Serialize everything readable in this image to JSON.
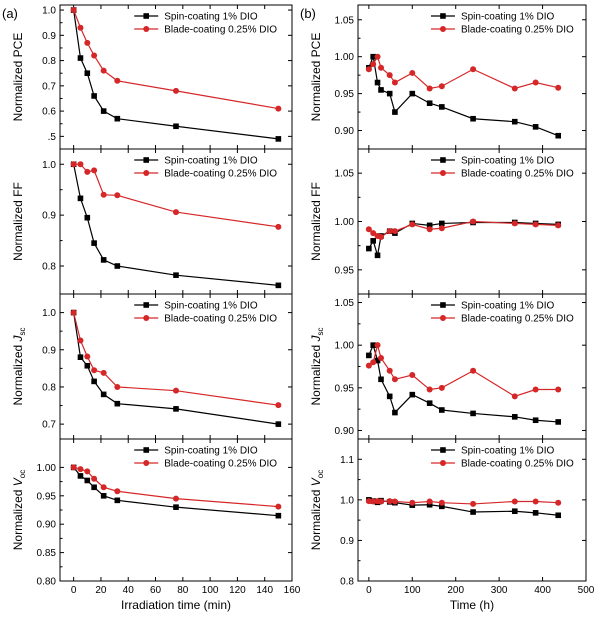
{
  "figure": {
    "colors": {
      "black_series": "#000000",
      "red_series": "#d62728",
      "frame": "#000000"
    }
  },
  "chart_data": [
    {
      "panel_id": "(a)",
      "type": "line",
      "row": 0,
      "col": 0,
      "ylabel": "Normalized PCE",
      "xlim": [
        -10,
        160
      ],
      "ylim": [
        0.45,
        1.02
      ],
      "yticks": [
        0.5,
        0.6,
        0.7,
        0.8,
        0.9,
        1.0
      ],
      "ytick_labels": [
        ".5",
        "0.6",
        "0.7",
        "0.8",
        "0.9",
        "1.0"
      ],
      "x": [
        0,
        5,
        10,
        15,
        22,
        32,
        75,
        150
      ],
      "series": [
        {
          "name": "Spin-coating 1% DIO",
          "color": "#000000",
          "marker": "square",
          "values": [
            1.0,
            0.81,
            0.75,
            0.66,
            0.6,
            0.57,
            0.54,
            0.49
          ]
        },
        {
          "name": "Blade-coating 0.25% DIO",
          "color": "#d62728",
          "marker": "circle",
          "values": [
            1.0,
            0.93,
            0.87,
            0.82,
            0.76,
            0.72,
            0.68,
            0.61
          ]
        }
      ]
    },
    {
      "type": "line",
      "row": 1,
      "col": 0,
      "ylabel": "Normalized FF",
      "xlim": [
        -10,
        160
      ],
      "ylim": [
        0.745,
        1.03
      ],
      "yticks": [
        0.8,
        0.9,
        1.0
      ],
      "ytick_labels": [
        "0.8",
        "0.9",
        "1.0"
      ],
      "x": [
        0,
        5,
        10,
        15,
        22,
        32,
        75,
        150
      ],
      "series": [
        {
          "name": "Spin-coating 1% DIO",
          "color": "#000000",
          "marker": "square",
          "values": [
            1.0,
            0.933,
            0.895,
            0.845,
            0.812,
            0.8,
            0.782,
            0.762
          ]
        },
        {
          "name": "Blade-coating 0.25% DIO",
          "color": "#d62728",
          "marker": "circle",
          "values": [
            1.0,
            1.0,
            0.985,
            0.988,
            0.94,
            0.939,
            0.906,
            0.877
          ]
        }
      ]
    },
    {
      "type": "line",
      "row": 2,
      "col": 0,
      "ylabel_prefix": "Normalized ",
      "ylabel_italic": "J",
      "ylabel_sub": "sc",
      "xlim": [
        -10,
        160
      ],
      "ylim": [
        0.66,
        1.05
      ],
      "yticks": [
        0.7,
        0.8,
        0.9,
        1.0
      ],
      "ytick_labels": [
        "0.7",
        "0.8",
        "0.9",
        "1.0"
      ],
      "x": [
        0,
        5,
        10,
        15,
        22,
        32,
        75,
        150
      ],
      "series": [
        {
          "name": "Spin-coating 1% DIO",
          "color": "#000000",
          "marker": "square",
          "values": [
            1.0,
            0.88,
            0.857,
            0.815,
            0.78,
            0.755,
            0.741,
            0.7
          ]
        },
        {
          "name": "Blade-coating 0.25% DIO",
          "color": "#d62728",
          "marker": "circle",
          "values": [
            1.0,
            0.925,
            0.882,
            0.845,
            0.838,
            0.8,
            0.79,
            0.751
          ]
        }
      ]
    },
    {
      "type": "line",
      "row": 3,
      "col": 0,
      "ylabel_prefix": "Normalized ",
      "ylabel_italic": "V",
      "ylabel_sub": "oc",
      "xlabel": "Irradiation time (min)",
      "xlim": [
        -10,
        160
      ],
      "ylim": [
        0.8,
        1.05
      ],
      "yticks": [
        0.8,
        0.85,
        0.9,
        0.95,
        1.0
      ],
      "ytick_labels": [
        "0.80",
        "0.85",
        "0.90",
        "0.95",
        "1.00"
      ],
      "xticks": [
        0,
        20,
        40,
        60,
        80,
        100,
        120,
        140,
        160
      ],
      "xtick_labels": [
        "0",
        "20",
        "40",
        "60",
        "80",
        "100",
        "120",
        "140",
        "160"
      ],
      "x": [
        0,
        5,
        10,
        15,
        22,
        32,
        75,
        150
      ],
      "series": [
        {
          "name": "Spin-coating 1% DIO",
          "color": "#000000",
          "marker": "square",
          "values": [
            1.0,
            0.985,
            0.977,
            0.965,
            0.95,
            0.942,
            0.93,
            0.915
          ]
        },
        {
          "name": "Blade-coating 0.25% DIO",
          "color": "#d62728",
          "marker": "circle",
          "values": [
            1.0,
            0.997,
            0.993,
            0.98,
            0.965,
            0.958,
            0.945,
            0.931
          ]
        }
      ]
    },
    {
      "panel_id": "(b)",
      "type": "line",
      "row": 0,
      "col": 1,
      "ylabel": "Normalized PCE",
      "xlim": [
        -25,
        500
      ],
      "ylim": [
        0.875,
        1.07
      ],
      "yticks": [
        0.9,
        0.95,
        1.0,
        1.05
      ],
      "ytick_labels": [
        "0.90",
        "0.95",
        "1.00",
        "1.05"
      ],
      "series": [
        {
          "name": "Spin-coating 1% DIO",
          "color": "#000000",
          "marker": "square",
          "x": [
            0,
            10,
            20,
            28,
            48,
            60,
            100,
            140,
            168,
            240,
            336,
            384,
            436
          ],
          "values": [
            0.985,
            1.0,
            0.965,
            0.955,
            0.95,
            0.925,
            0.95,
            0.937,
            0.932,
            0.916,
            0.912,
            0.905,
            0.893
          ]
        },
        {
          "name": "Blade-coating 0.25% DIO",
          "color": "#d62728",
          "marker": "circle",
          "x": [
            0,
            10,
            20,
            28,
            48,
            60,
            100,
            140,
            168,
            240,
            336,
            384,
            436
          ],
          "values": [
            0.983,
            0.99,
            1.0,
            0.985,
            0.975,
            0.965,
            0.978,
            0.957,
            0.96,
            0.983,
            0.957,
            0.965,
            0.958
          ]
        }
      ]
    },
    {
      "type": "line",
      "row": 1,
      "col": 1,
      "ylabel": "Normalized FF",
      "xlim": [
        -25,
        500
      ],
      "ylim": [
        0.925,
        1.075
      ],
      "yticks": [
        0.95,
        1.0,
        1.05
      ],
      "ytick_labels": [
        "0.95",
        "1.00",
        "1.05"
      ],
      "series": [
        {
          "name": "Spin-coating 1% DIO",
          "color": "#000000",
          "marker": "square",
          "x": [
            0,
            10,
            20,
            28,
            48,
            60,
            100,
            140,
            168,
            240,
            336,
            384,
            436
          ],
          "values": [
            0.972,
            0.98,
            0.965,
            0.985,
            0.99,
            0.988,
            0.998,
            0.996,
            0.998,
            0.999,
            0.999,
            0.998,
            0.997
          ]
        },
        {
          "name": "Blade-coating 0.25% DIO",
          "color": "#d62728",
          "marker": "circle",
          "x": [
            0,
            10,
            20,
            28,
            48,
            60,
            100,
            140,
            168,
            240,
            336,
            384,
            436
          ],
          "values": [
            0.992,
            0.988,
            0.985,
            0.984,
            0.99,
            0.99,
            0.997,
            0.992,
            0.993,
            1.0,
            0.998,
            0.997,
            0.996
          ]
        }
      ]
    },
    {
      "type": "line",
      "row": 2,
      "col": 1,
      "ylabel_prefix": "Normalized ",
      "ylabel_italic": "J",
      "ylabel_sub": "sc",
      "xlim": [
        -25,
        500
      ],
      "ylim": [
        0.89,
        1.06
      ],
      "yticks": [
        0.9,
        0.95,
        1.0,
        1.05
      ],
      "ytick_labels": [
        "0.90",
        "0.95",
        "1.00",
        "1.05"
      ],
      "series": [
        {
          "name": "Spin-coating 1% DIO",
          "color": "#000000",
          "marker": "square",
          "x": [
            0,
            10,
            20,
            28,
            48,
            60,
            100,
            140,
            168,
            240,
            336,
            384,
            436
          ],
          "values": [
            0.988,
            1.0,
            0.982,
            0.96,
            0.94,
            0.921,
            0.942,
            0.932,
            0.924,
            0.92,
            0.916,
            0.912,
            0.91
          ]
        },
        {
          "name": "Blade-coating 0.25% DIO",
          "color": "#d62728",
          "marker": "circle",
          "x": [
            0,
            10,
            20,
            28,
            48,
            60,
            100,
            140,
            168,
            240,
            336,
            384,
            436
          ],
          "values": [
            0.976,
            0.98,
            1.0,
            0.985,
            0.97,
            0.96,
            0.965,
            0.948,
            0.95,
            0.97,
            0.94,
            0.948,
            0.948
          ]
        }
      ]
    },
    {
      "type": "line",
      "row": 3,
      "col": 1,
      "ylabel_prefix": "Normalized ",
      "ylabel_italic": "V",
      "ylabel_sub": "oc",
      "xlabel": "Time (h)",
      "xlim": [
        -25,
        500
      ],
      "ylim": [
        0.8,
        1.15
      ],
      "yticks": [
        0.8,
        0.9,
        1.0,
        1.1
      ],
      "ytick_labels": [
        "0.8",
        "0.9",
        "1.0",
        "1.1"
      ],
      "xticks": [
        0,
        100,
        200,
        300,
        400,
        500
      ],
      "xtick_labels": [
        "0",
        "100",
        "200",
        "300",
        "400",
        "500"
      ],
      "series": [
        {
          "name": "Spin-coating 1% DIO",
          "color": "#000000",
          "marker": "square",
          "x": [
            0,
            10,
            20,
            28,
            48,
            60,
            100,
            140,
            168,
            240,
            336,
            384,
            436
          ],
          "values": [
            1.0,
            0.997,
            0.994,
            0.998,
            0.995,
            0.993,
            0.987,
            0.988,
            0.984,
            0.97,
            0.972,
            0.968,
            0.962
          ]
        },
        {
          "name": "Blade-coating 0.25% DIO",
          "color": "#d62728",
          "marker": "circle",
          "x": [
            0,
            10,
            20,
            28,
            48,
            60,
            100,
            140,
            168,
            240,
            336,
            384,
            436
          ],
          "values": [
            0.997,
            0.996,
            0.997,
            0.996,
            0.997,
            0.996,
            0.993,
            0.996,
            0.993,
            0.99,
            0.996,
            0.996,
            0.993
          ]
        }
      ]
    }
  ]
}
